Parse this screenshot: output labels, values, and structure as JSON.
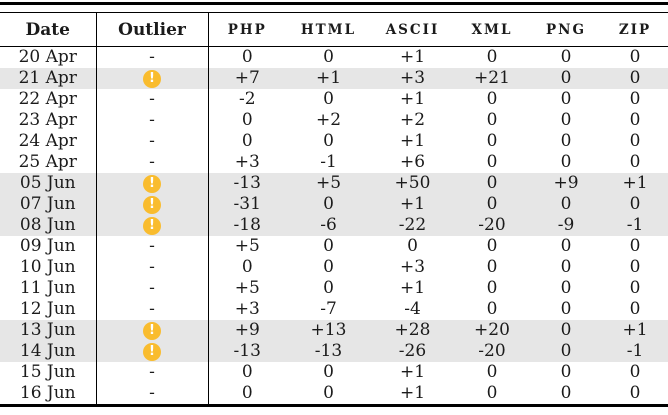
{
  "table": {
    "header": {
      "date": "Date",
      "outlier": "Outlier",
      "metrics": [
        "PHP",
        "HTML",
        "ASCII",
        "XML",
        "PNG",
        "ZIP"
      ]
    },
    "no_outlier_marker": "-",
    "outlier_icon_glyph": "!",
    "rows": [
      {
        "date": "20 Apr",
        "outlier": false,
        "highlighted": false,
        "values": [
          "0",
          "0",
          "+1",
          "0",
          "0",
          "0"
        ]
      },
      {
        "date": "21 Apr",
        "outlier": true,
        "highlighted": true,
        "values": [
          "+7",
          "+1",
          "+3",
          "+21",
          "0",
          "0"
        ]
      },
      {
        "date": "22 Apr",
        "outlier": false,
        "highlighted": false,
        "values": [
          "-2",
          "0",
          "+1",
          "0",
          "0",
          "0"
        ]
      },
      {
        "date": "23 Apr",
        "outlier": false,
        "highlighted": false,
        "values": [
          "0",
          "+2",
          "+2",
          "0",
          "0",
          "0"
        ]
      },
      {
        "date": "24 Apr",
        "outlier": false,
        "highlighted": false,
        "values": [
          "0",
          "0",
          "+1",
          "0",
          "0",
          "0"
        ]
      },
      {
        "date": "25 Apr",
        "outlier": false,
        "highlighted": false,
        "values": [
          "+3",
          "-1",
          "+6",
          "0",
          "0",
          "0"
        ]
      },
      {
        "date": "05 Jun",
        "outlier": true,
        "highlighted": true,
        "values": [
          "-13",
          "+5",
          "+50",
          "0",
          "+9",
          "+1"
        ]
      },
      {
        "date": "07 Jun",
        "outlier": true,
        "highlighted": true,
        "values": [
          "-31",
          "0",
          "+1",
          "0",
          "0",
          "0"
        ]
      },
      {
        "date": "08 Jun",
        "outlier": true,
        "highlighted": true,
        "values": [
          "-18",
          "-6",
          "-22",
          "-20",
          "-9",
          "-1"
        ]
      },
      {
        "date": "09 Jun",
        "outlier": false,
        "highlighted": false,
        "values": [
          "+5",
          "0",
          "0",
          "0",
          "0",
          "0"
        ]
      },
      {
        "date": "10 Jun",
        "outlier": false,
        "highlighted": false,
        "values": [
          "0",
          "0",
          "+3",
          "0",
          "0",
          "0"
        ]
      },
      {
        "date": "11 Jun",
        "outlier": false,
        "highlighted": false,
        "values": [
          "+5",
          "0",
          "+1",
          "0",
          "0",
          "0"
        ]
      },
      {
        "date": "12 Jun",
        "outlier": false,
        "highlighted": false,
        "values": [
          "+3",
          "-7",
          "-4",
          "0",
          "0",
          "0"
        ]
      },
      {
        "date": "13 Jun",
        "outlier": true,
        "highlighted": true,
        "values": [
          "+9",
          "+13",
          "+28",
          "+20",
          "0",
          "+1"
        ]
      },
      {
        "date": "14 Jun",
        "outlier": true,
        "highlighted": true,
        "values": [
          "-13",
          "-13",
          "-26",
          "-20",
          "0",
          "-1"
        ]
      },
      {
        "date": "15 Jun",
        "outlier": false,
        "highlighted": false,
        "values": [
          "0",
          "0",
          "+1",
          "0",
          "0",
          "0"
        ]
      },
      {
        "date": "16 Jun",
        "outlier": false,
        "highlighted": false,
        "values": [
          "0",
          "0",
          "+1",
          "0",
          "0",
          "0"
        ]
      }
    ]
  },
  "colors": {
    "highlight_row": "#e6e6e6",
    "outlier_icon_bg": "#f9bc2e",
    "outlier_icon_fg": "#ffffff",
    "rule": "#000000",
    "text": "#1b1b1b",
    "background": "#ffffff"
  }
}
